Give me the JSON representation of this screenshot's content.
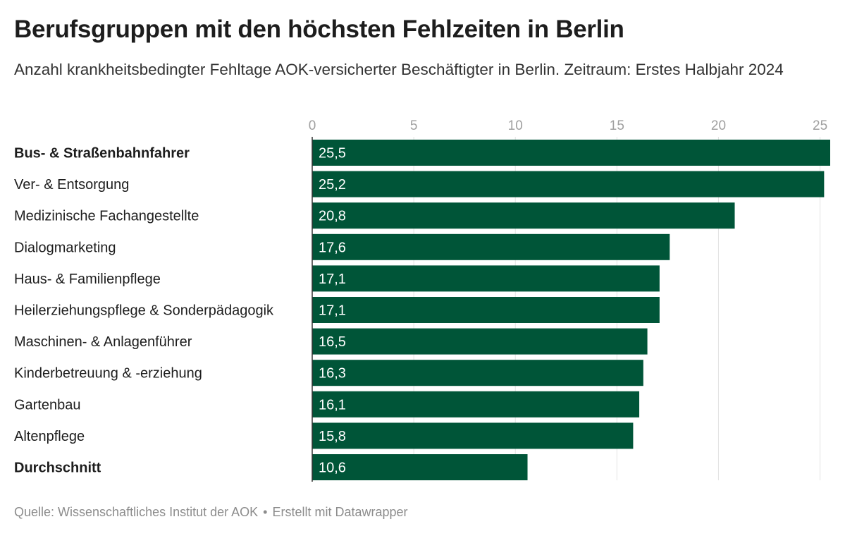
{
  "title": "Berufsgruppen mit den höchsten Fehlzeiten in Berlin",
  "subtitle": "Anzahl krankheitsbedingter Fehltage AOK-versicherter Beschäftigter in Berlin. Zeitraum: Erstes Halbjahr 2024",
  "footer": {
    "source": "Quelle: Wissenschaftliches Institut der AOK",
    "separator": "•",
    "credit": "Erstellt mit Datawrapper"
  },
  "colors": {
    "bar": "#005538",
    "bar_label": "#ffffff",
    "axis_tick": "#a0a0a0",
    "grid": "#e3e3e3",
    "category_label": "#1d1d1d"
  },
  "chart_data": {
    "type": "bar",
    "orientation": "horizontal",
    "title": "Berufsgruppen mit den höchsten Fehlzeiten in Berlin",
    "subtitle": "Anzahl krankheitsbedingter Fehltage AOK-versicherter Beschäftigter in Berlin. Zeitraum: Erstes Halbjahr 2024",
    "xlim": [
      0,
      25.5
    ],
    "xticks": [
      0,
      5,
      10,
      15,
      20,
      25
    ],
    "grid": true,
    "legend": "none",
    "categories": [
      "Bus- & Straßenbahnfahrer",
      "Ver- & Entsorgung",
      "Medizinische Fachangestellte",
      "Dialogmarketing",
      "Haus- & Familienpflege",
      "Heilerziehungspflege & Sonderpädagogik",
      "Maschinen- & Anlagenführer",
      "Kinderbetreuung & -erziehung",
      "Gartenbau",
      "Altenpflege",
      "Durchschnitt"
    ],
    "bold_categories": [
      "Bus- & Straßenbahnfahrer",
      "Durchschnitt"
    ],
    "values": [
      25.5,
      25.2,
      20.8,
      17.6,
      17.1,
      17.1,
      16.5,
      16.3,
      16.1,
      15.8,
      10.6
    ],
    "value_labels": [
      "25,5",
      "25,2",
      "20,8",
      "17,6",
      "17,1",
      "17,1",
      "16,5",
      "16,3",
      "16,1",
      "15,8",
      "10,6"
    ]
  }
}
